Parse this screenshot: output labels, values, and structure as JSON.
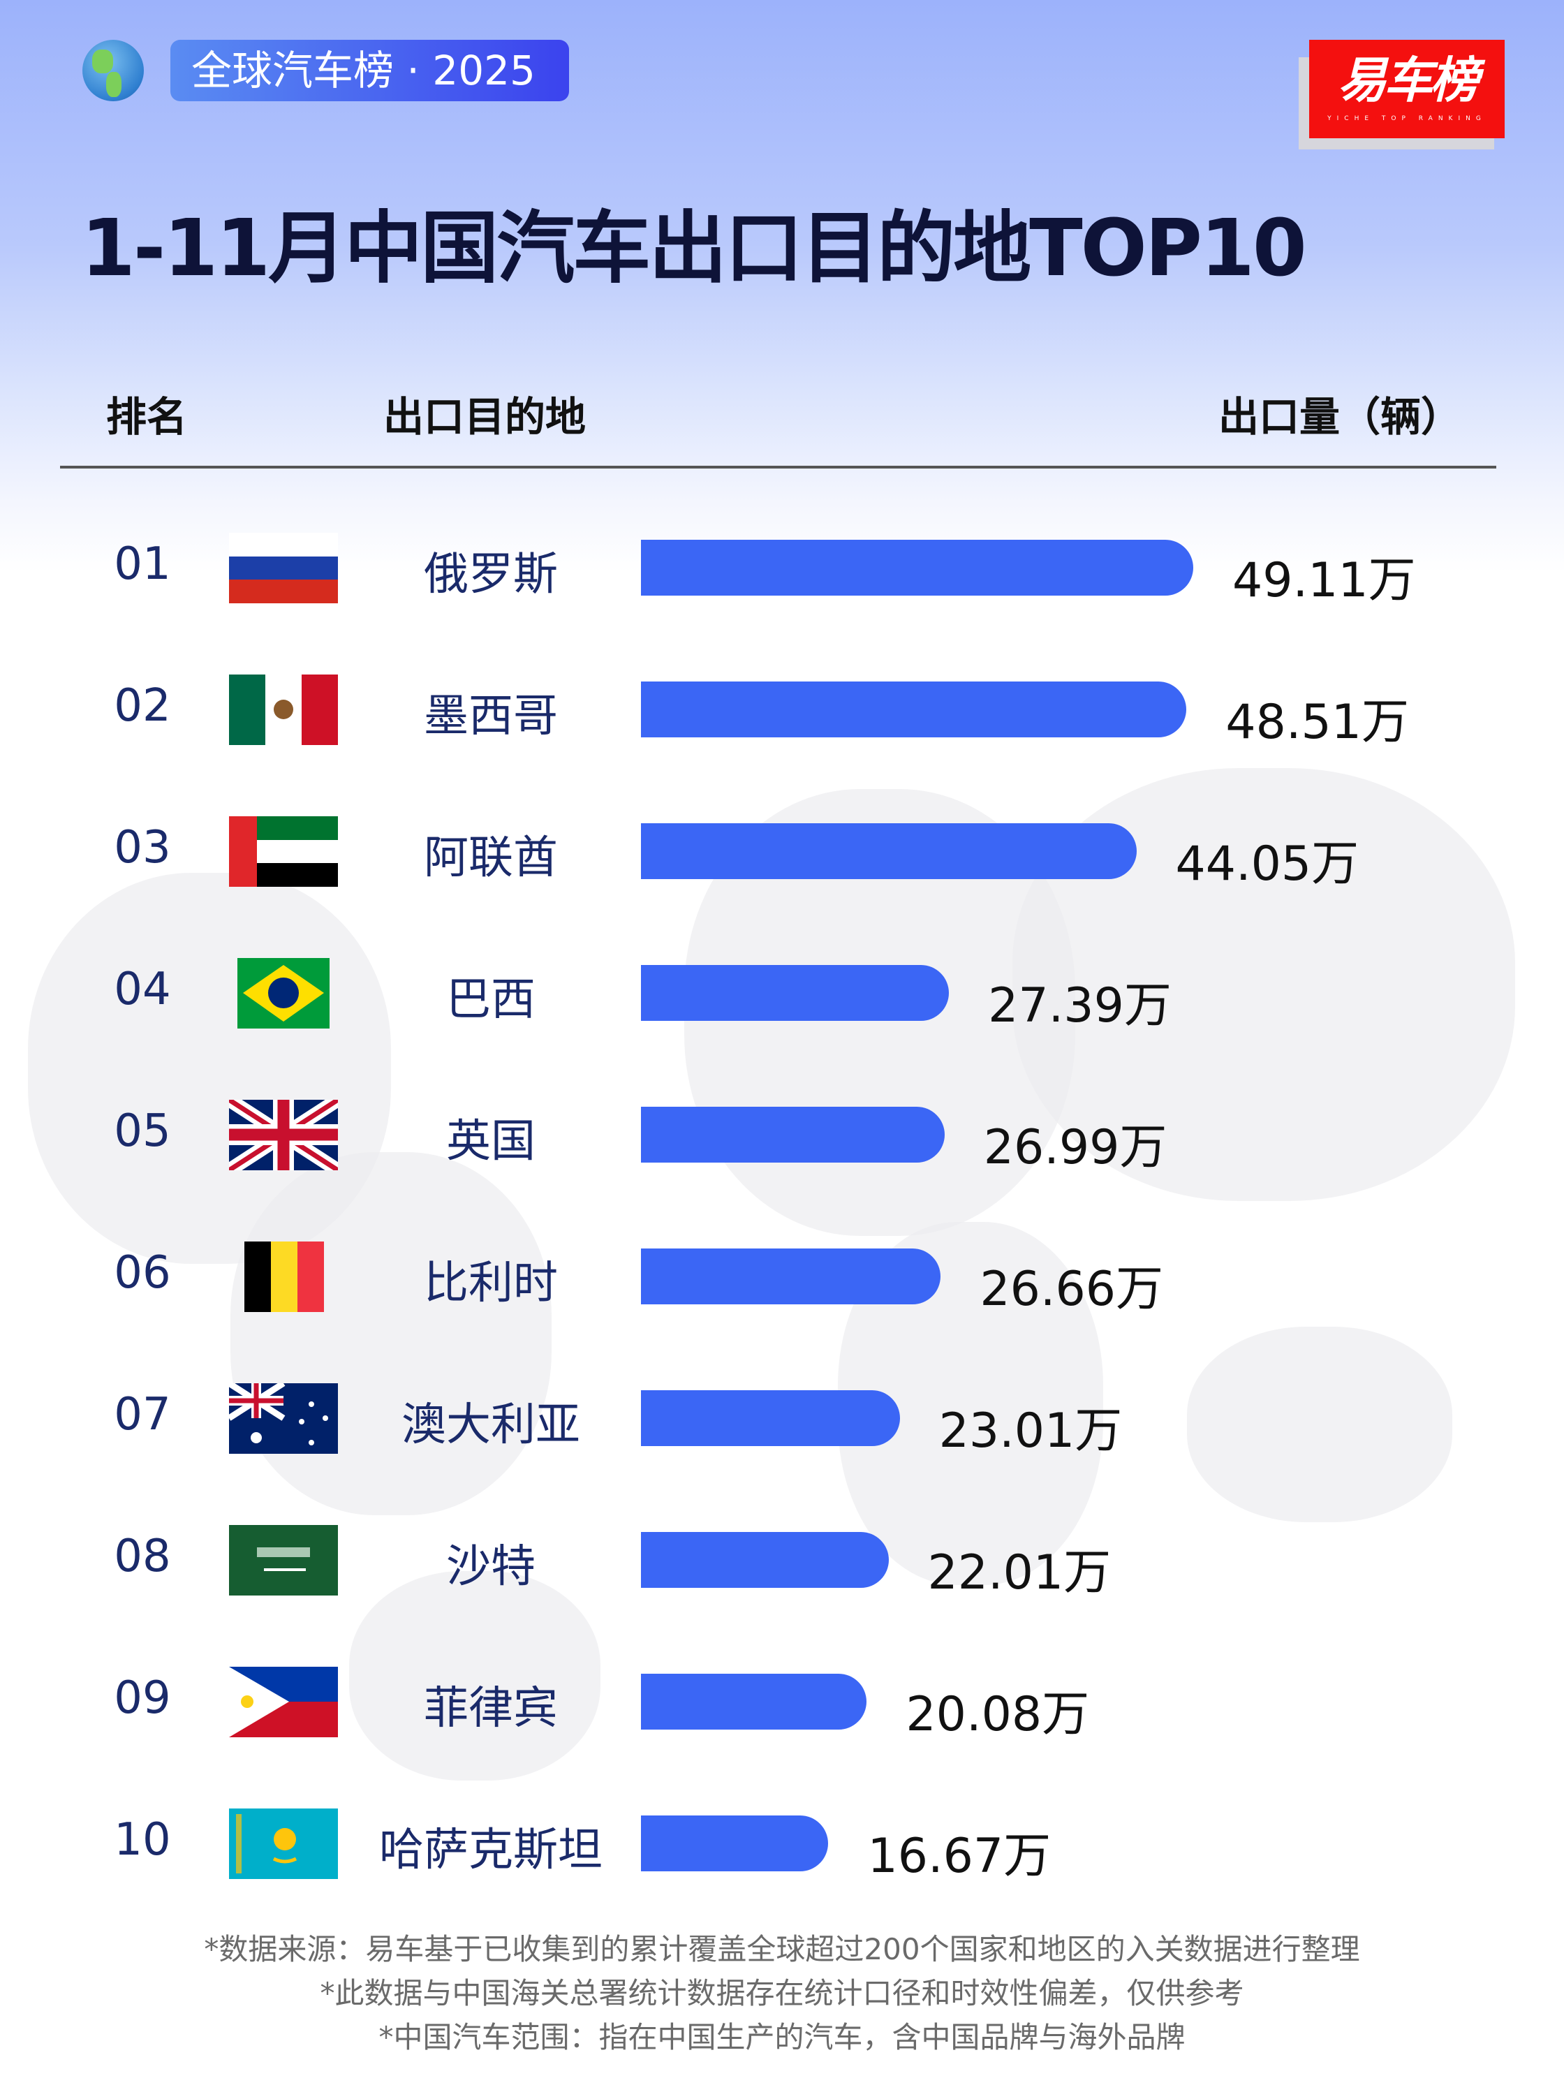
{
  "header": {
    "badge": "全球汽车榜 · 2025",
    "logo_text": "易车榜",
    "logo_subtext": "YICHE TOP RANKING",
    "globe_icon": "globe-icon"
  },
  "chart_data": {
    "type": "bar",
    "orientation": "horizontal",
    "title": "1-11月中国汽车出口目的地TOP10",
    "columns": {
      "rank": "排名",
      "destination": "出口目的地",
      "volume": "出口量（辆）"
    },
    "bar_color": "#3b66f5",
    "unit": "万",
    "rows": [
      {
        "rank": "01",
        "country": "俄罗斯",
        "flag": "russia",
        "value": 49.11,
        "label": "49.11万"
      },
      {
        "rank": "02",
        "country": "墨西哥",
        "flag": "mexico",
        "value": 48.51,
        "label": "48.51万"
      },
      {
        "rank": "03",
        "country": "阿联酋",
        "flag": "uae",
        "value": 44.05,
        "label": "44.05万"
      },
      {
        "rank": "04",
        "country": "巴西",
        "flag": "brazil",
        "value": 27.39,
        "label": "27.39万"
      },
      {
        "rank": "05",
        "country": "英国",
        "flag": "uk",
        "value": 26.99,
        "label": "26.99万"
      },
      {
        "rank": "06",
        "country": "比利时",
        "flag": "belgium",
        "value": 26.66,
        "label": "26.66万"
      },
      {
        "rank": "07",
        "country": "澳大利亚",
        "flag": "australia",
        "value": 23.01,
        "label": "23.01万"
      },
      {
        "rank": "08",
        "country": "沙特",
        "flag": "saudi",
        "value": 22.01,
        "label": "22.01万"
      },
      {
        "rank": "09",
        "country": "菲律宾",
        "flag": "philippines",
        "value": 20.08,
        "label": "20.08万"
      },
      {
        "rank": "10",
        "country": "哈萨克斯坦",
        "flag": "kazakhstan",
        "value": 16.67,
        "label": "16.67万"
      }
    ]
  },
  "footer": {
    "notes": [
      "*数据来源：易车基于已收集到的累计覆盖全球超过200个国家和地区的入关数据进行整理",
      "*此数据与中国海关总署统计数据存在统计口径和时效性偏差，仅供参考",
      "*中国汽车范围：指在中国生产的汽车，含中国品牌与海外品牌"
    ]
  }
}
